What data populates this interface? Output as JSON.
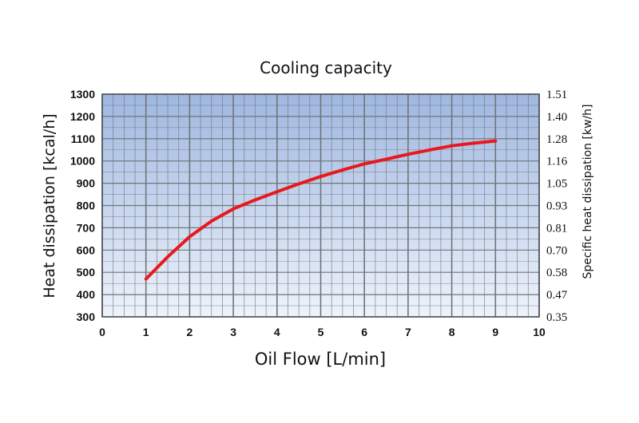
{
  "chart_data": {
    "type": "line",
    "title": "Cooling capacity",
    "xlabel": "Oil Flow [L/min]",
    "ylabel": "Heat dissipation [kcal/h]",
    "y2label": "Specific heat dissipation [kw/h]",
    "xlim": [
      0,
      10
    ],
    "ylim": [
      300,
      1300
    ],
    "x_ticks": [
      "0",
      "1",
      "2",
      "3",
      "4",
      "5",
      "6",
      "7",
      "8",
      "9",
      "10"
    ],
    "y_ticks": [
      "300",
      "400",
      "500",
      "600",
      "700",
      "800",
      "900",
      "1000",
      "1100",
      "1200",
      "1300"
    ],
    "y2_ticks": [
      "0.35",
      "0.47",
      "0.58",
      "0.70",
      "0.81",
      "0.93",
      "1.05",
      "1.16",
      "1.28",
      "1.40",
      "1.51"
    ],
    "grid": true,
    "colors": {
      "line": "#e8191c",
      "grid": "#6f7478",
      "bg_top": "#9fb7e0",
      "bg_bottom": "#eef3fb"
    },
    "series": [
      {
        "x": [
          1,
          1.5,
          2,
          2.5,
          3,
          3.5,
          4,
          4.5,
          5,
          5.5,
          6,
          6.5,
          7,
          7.5,
          8,
          8.5,
          9
        ],
        "values": [
          470,
          570,
          660,
          730,
          785,
          825,
          862,
          897,
          930,
          960,
          987,
          1008,
          1030,
          1050,
          1068,
          1080,
          1090
        ]
      }
    ]
  }
}
